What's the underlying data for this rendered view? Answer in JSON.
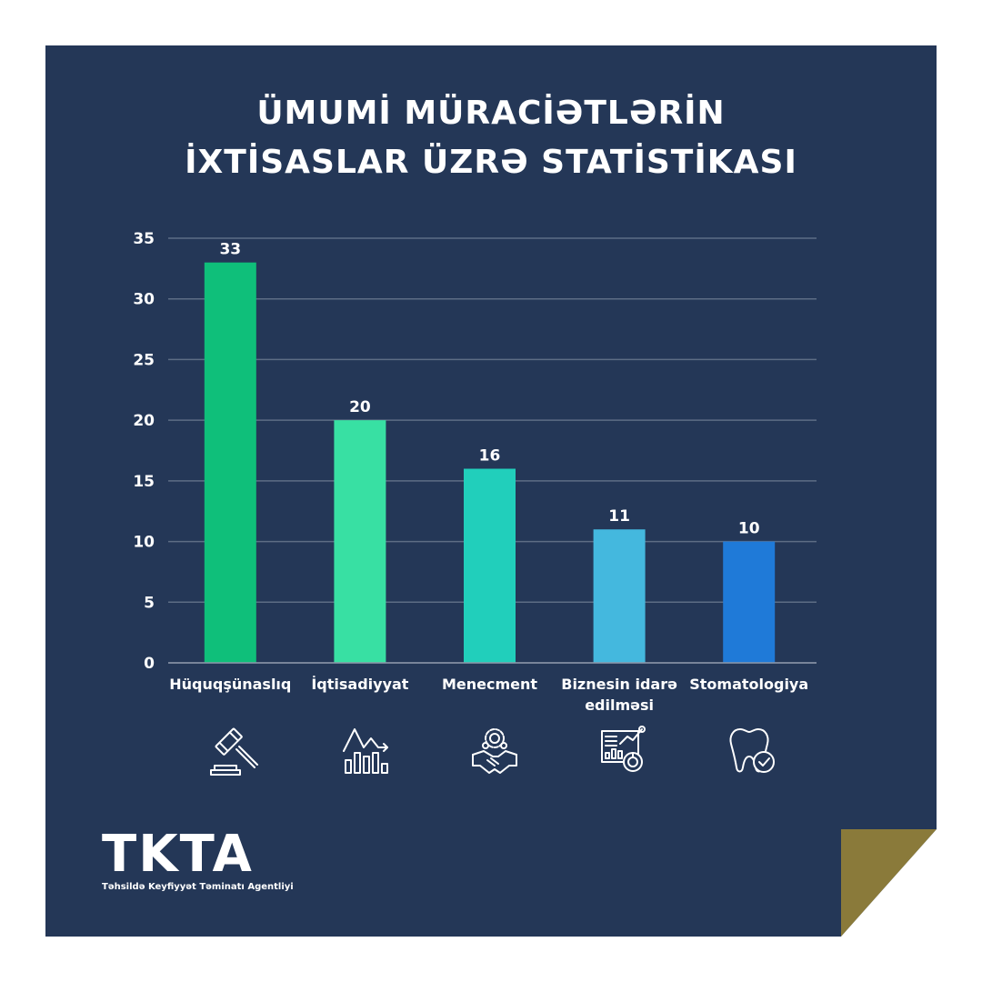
{
  "title": {
    "line1": "ÜMUMİ MÜRACİƏTLƏRİN",
    "line2": "İXTİSASLAR ÜZRƏ STATİSTİKASI"
  },
  "chart_data": {
    "type": "bar",
    "categories": [
      "Hüquqşünaslıq",
      "İqtisadiyyat",
      "Menecment",
      "Biznesin idarə edilməsi",
      "Stomatologiya"
    ],
    "category_lines": [
      [
        "Hüquqşünaslıq"
      ],
      [
        "İqtisadiyyat"
      ],
      [
        "Menecment"
      ],
      [
        "Biznesin idarə",
        "edilməsi"
      ],
      [
        "Stomatologiya"
      ]
    ],
    "values": [
      33,
      20,
      16,
      11,
      10
    ],
    "data_labels": [
      "33",
      "20",
      "16",
      "11",
      "10"
    ],
    "ylim": [
      0,
      35
    ],
    "yticks": [
      0,
      5,
      10,
      15,
      20,
      25,
      30,
      35
    ],
    "grid": true,
    "bar_colors": [
      "#0fbf7a",
      "#38e0a3",
      "#21cfbb",
      "#44b8de",
      "#1f7ad8"
    ],
    "title": "",
    "xlabel": "",
    "ylabel": ""
  },
  "icons": [
    "gavel-icon",
    "economy-chart-icon",
    "management-handshake-icon",
    "business-analytics-icon",
    "tooth-check-icon"
  ],
  "logo": {
    "mark": "TKTA",
    "subtitle": "Təhsildə Keyfiyyət Təminatı Agentliyi"
  },
  "colors": {
    "background": "#243757",
    "accent_corner": "#8a7a3a",
    "grid": "#5d6d85",
    "text": "#ffffff"
  }
}
